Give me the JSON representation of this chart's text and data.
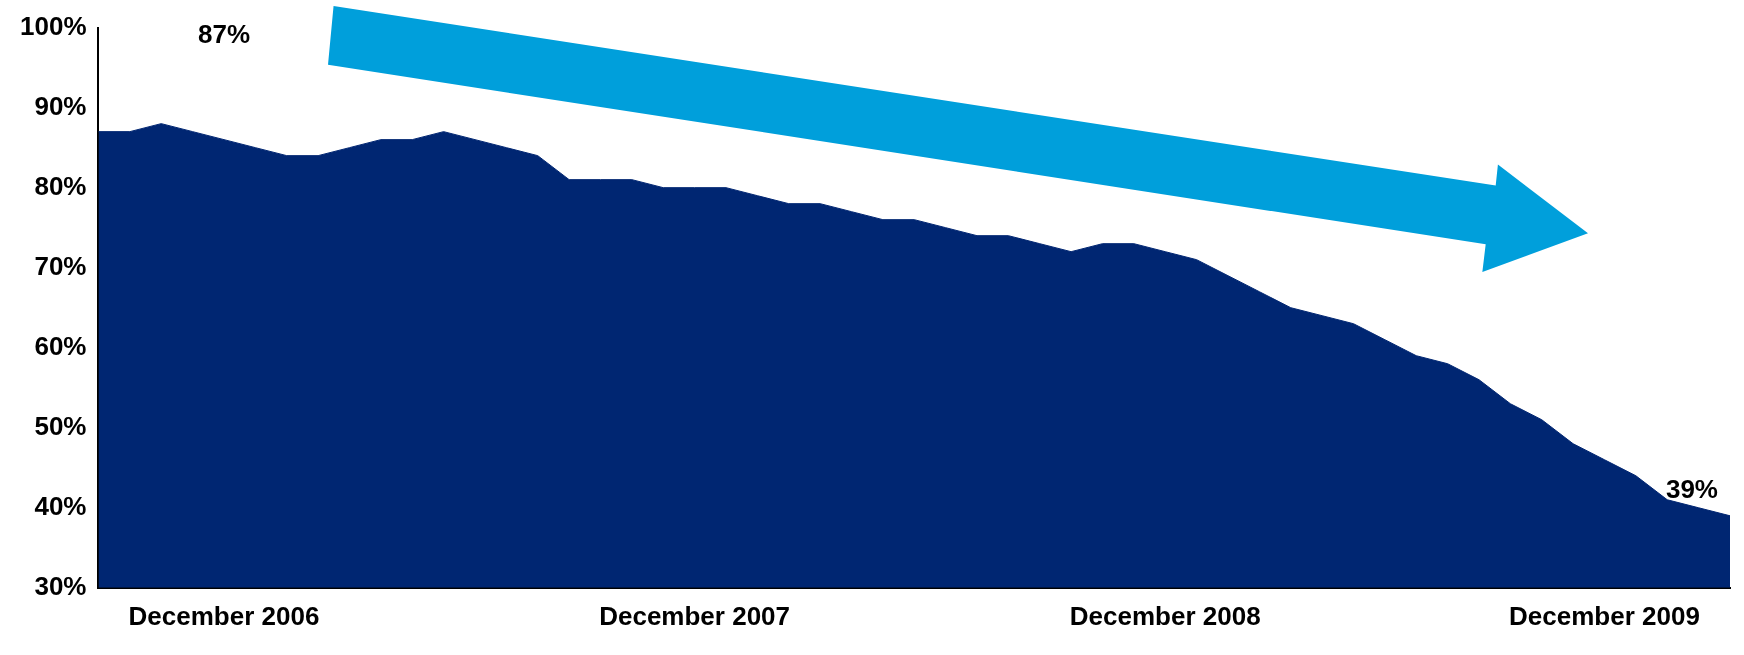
{
  "chart_data": {
    "type": "area",
    "categories": [
      null,
      null,
      null,
      null,
      "December 2006",
      null,
      null,
      null,
      null,
      null,
      null,
      null,
      null,
      null,
      null,
      null,
      null,
      null,
      null,
      "December 2007",
      null,
      null,
      null,
      null,
      null,
      null,
      null,
      null,
      null,
      null,
      null,
      null,
      null,
      null,
      "December 2008",
      null,
      null,
      null,
      null,
      null,
      null,
      null,
      null,
      null,
      null,
      null,
      null,
      null,
      "December 2009",
      null,
      null,
      null,
      null
    ],
    "series": [
      {
        "color": "#002672",
        "values": [
          87,
          87,
          88,
          87,
          86,
          85,
          84,
          84,
          85,
          86,
          86,
          87,
          86,
          85,
          84,
          81,
          81,
          81,
          80,
          80,
          80,
          79,
          78,
          78,
          77,
          76,
          76,
          75,
          74,
          74,
          73,
          72,
          73,
          73,
          72,
          71,
          69,
          67,
          65,
          64,
          63,
          61,
          59,
          58,
          56,
          53,
          51,
          48,
          46,
          44,
          41,
          40,
          39
        ]
      }
    ],
    "ylim": [
      30,
      100
    ],
    "yticks": [
      {
        "value": 30,
        "label": "30%"
      },
      {
        "value": 40,
        "label": "40%"
      },
      {
        "value": 50,
        "label": "50%"
      },
      {
        "value": 60,
        "label": "60%"
      },
      {
        "value": 70,
        "label": "70%"
      },
      {
        "value": 80,
        "label": "80%"
      },
      {
        "value": 90,
        "label": "90%"
      },
      {
        "value": 100,
        "label": "100%"
      }
    ],
    "grid": false,
    "legend": false,
    "annotations": [
      "87%",
      "39%"
    ]
  }
}
